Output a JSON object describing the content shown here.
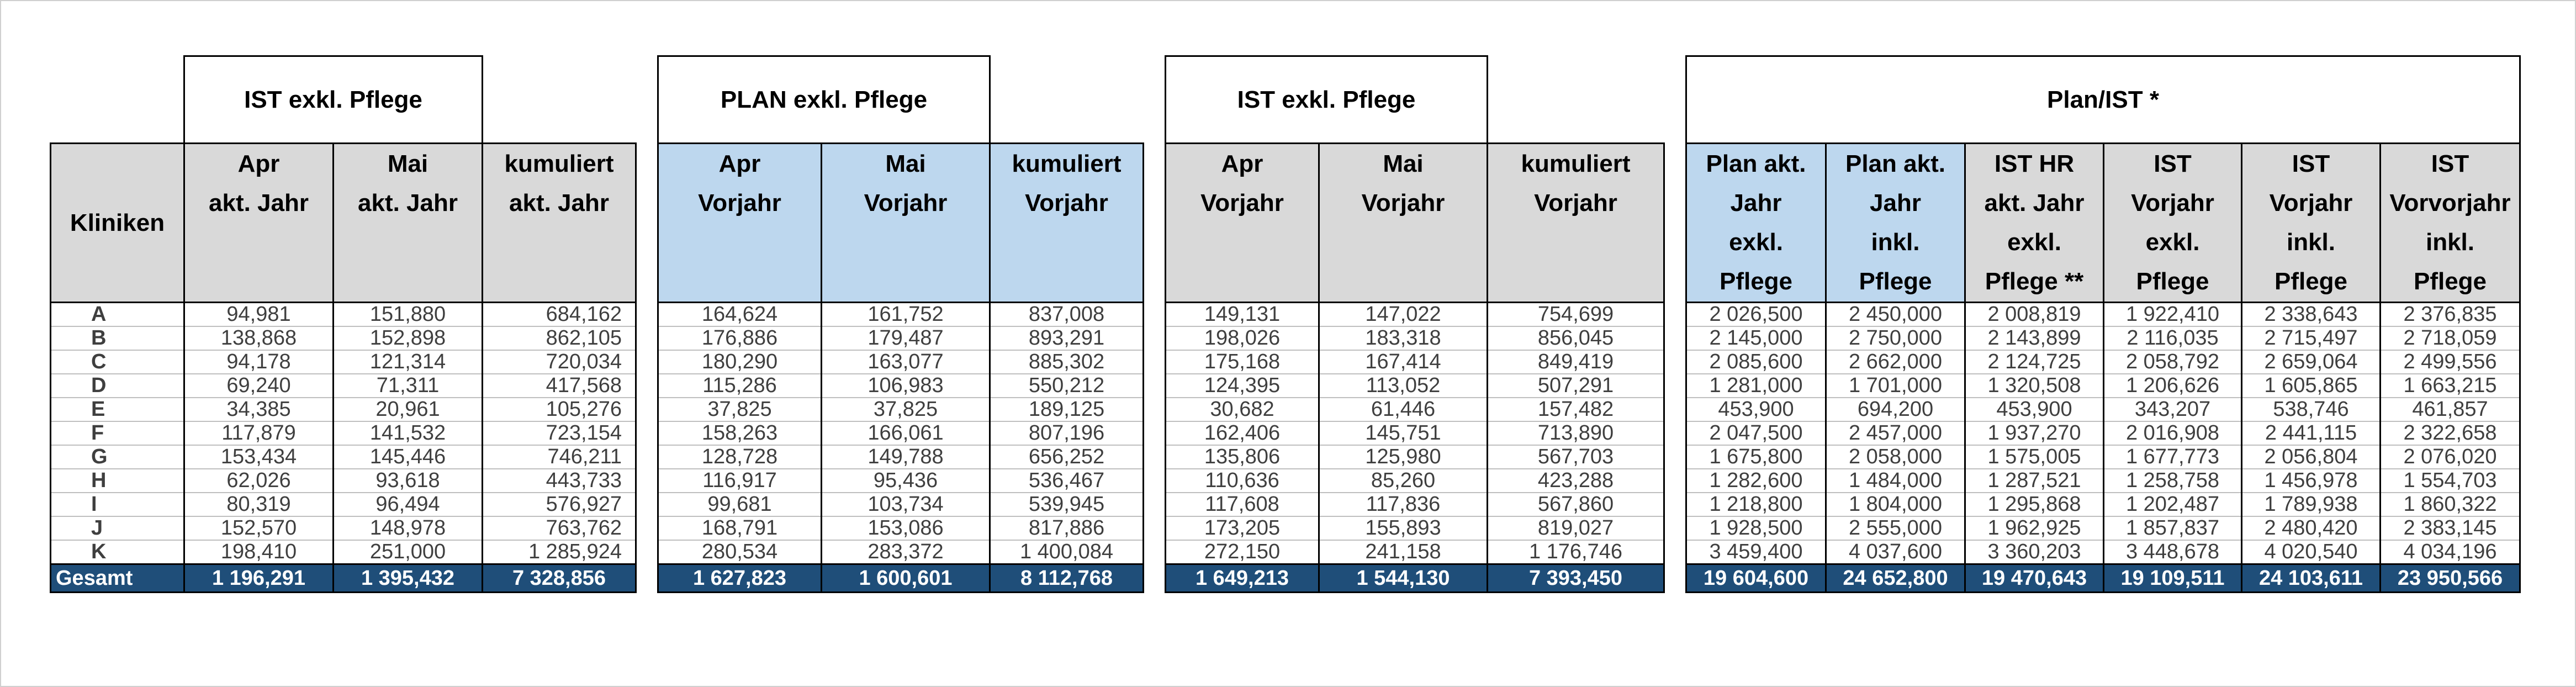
{
  "row_label_header": "Kliniken",
  "total_label": "Gesamt",
  "rows": [
    "A",
    "B",
    "C",
    "D",
    "E",
    "F",
    "G",
    "H",
    "I",
    "J",
    "K"
  ],
  "g1": {
    "title": "IST exkl. Pflege",
    "headers": [
      "Apr\nakt. Jahr",
      "Mai\nakt. Jahr",
      "kumuliert\nakt. Jahr"
    ],
    "data": [
      [
        "94,981",
        "151,880",
        "684,162"
      ],
      [
        "138,868",
        "152,898",
        "862,105"
      ],
      [
        "94,178",
        "121,314",
        "720,034"
      ],
      [
        "69,240",
        "71,311",
        "417,568"
      ],
      [
        "34,385",
        "20,961",
        "105,276"
      ],
      [
        "117,879",
        "141,532",
        "723,154"
      ],
      [
        "153,434",
        "145,446",
        "746,211"
      ],
      [
        "62,026",
        "93,618",
        "443,733"
      ],
      [
        "80,319",
        "96,494",
        "576,927"
      ],
      [
        "152,570",
        "148,978",
        "763,762"
      ],
      [
        "198,410",
        "251,000",
        "1 285,924"
      ]
    ],
    "totals": [
      "1 196,291",
      "1 395,432",
      "7 328,856"
    ]
  },
  "g2": {
    "title": "PLAN exkl. Pflege",
    "headers": [
      "Apr\nVorjahr",
      "Mai\nVorjahr",
      "kumuliert\nVorjahr"
    ],
    "data": [
      [
        "164,624",
        "161,752",
        "837,008"
      ],
      [
        "176,886",
        "179,487",
        "893,291"
      ],
      [
        "180,290",
        "163,077",
        "885,302"
      ],
      [
        "115,286",
        "106,983",
        "550,212"
      ],
      [
        "37,825",
        "37,825",
        "189,125"
      ],
      [
        "158,263",
        "166,061",
        "807,196"
      ],
      [
        "128,728",
        "149,788",
        "656,252"
      ],
      [
        "116,917",
        "95,436",
        "536,467"
      ],
      [
        "99,681",
        "103,734",
        "539,945"
      ],
      [
        "168,791",
        "153,086",
        "817,886"
      ],
      [
        "280,534",
        "283,372",
        "1 400,084"
      ]
    ],
    "totals": [
      "1 627,823",
      "1 600,601",
      "8 112,768"
    ]
  },
  "g3": {
    "title": "IST exkl. Pflege",
    "headers": [
      "Apr\nVorjahr",
      "Mai\nVorjahr",
      "kumuliert\nVorjahr"
    ],
    "data": [
      [
        "149,131",
        "147,022",
        "754,699"
      ],
      [
        "198,026",
        "183,318",
        "856,045"
      ],
      [
        "175,168",
        "167,414",
        "849,419"
      ],
      [
        "124,395",
        "113,052",
        "507,291"
      ],
      [
        "30,682",
        "61,446",
        "157,482"
      ],
      [
        "162,406",
        "145,751",
        "713,890"
      ],
      [
        "135,806",
        "125,980",
        "567,703"
      ],
      [
        "110,636",
        "85,260",
        "423,288"
      ],
      [
        "117,608",
        "117,836",
        "567,860"
      ],
      [
        "173,205",
        "155,893",
        "819,027"
      ],
      [
        "272,150",
        "241,158",
        "1 176,746"
      ]
    ],
    "totals": [
      "1 649,213",
      "1 544,130",
      "7 393,450"
    ]
  },
  "g4": {
    "title": "Plan/IST *",
    "headers": [
      "Plan akt.\nJahr\nexkl.\nPflege",
      "Plan akt.\nJahr\ninkl.\nPflege",
      "IST HR\nakt. Jahr\nexkl.\nPflege **",
      "IST\nVorjahr\nexkl.\nPflege",
      "IST\nVorjahr\ninkl.\nPflege",
      "IST\nVorvorjahr\ninkl.\nPflege"
    ],
    "data": [
      [
        "2 026,500",
        "2 450,000",
        "2 008,819",
        "1 922,410",
        "2 338,643",
        "2 376,835"
      ],
      [
        "2 145,000",
        "2 750,000",
        "2 143,899",
        "2 116,035",
        "2 715,497",
        "2 718,059"
      ],
      [
        "2 085,600",
        "2 662,000",
        "2 124,725",
        "2 058,792",
        "2 659,064",
        "2 499,556"
      ],
      [
        "1 281,000",
        "1 701,000",
        "1 320,508",
        "1 206,626",
        "1 605,865",
        "1 663,215"
      ],
      [
        "453,900",
        "694,200",
        "453,900",
        "343,207",
        "538,746",
        "461,857"
      ],
      [
        "2 047,500",
        "2 457,000",
        "1 937,270",
        "2 016,908",
        "2 441,115",
        "2 322,658"
      ],
      [
        "1 675,800",
        "2 058,000",
        "1 575,005",
        "1 677,773",
        "2 056,804",
        "2 076,020"
      ],
      [
        "1 282,600",
        "1 484,000",
        "1 287,521",
        "1 258,758",
        "1 456,978",
        "1 554,703"
      ],
      [
        "1 218,800",
        "1 804,000",
        "1 295,868",
        "1 202,487",
        "1 789,938",
        "1 860,322"
      ],
      [
        "1 928,500",
        "2 555,000",
        "1 962,925",
        "1 857,837",
        "2 480,420",
        "2 383,145"
      ],
      [
        "3 459,400",
        "4 037,600",
        "3 360,203",
        "3 448,678",
        "4 020,540",
        "4 034,196"
      ]
    ],
    "totals": [
      "19 604,600",
      "24 652,800",
      "19 470,643",
      "19 109,511",
      "24 103,611",
      "23 950,566"
    ]
  }
}
